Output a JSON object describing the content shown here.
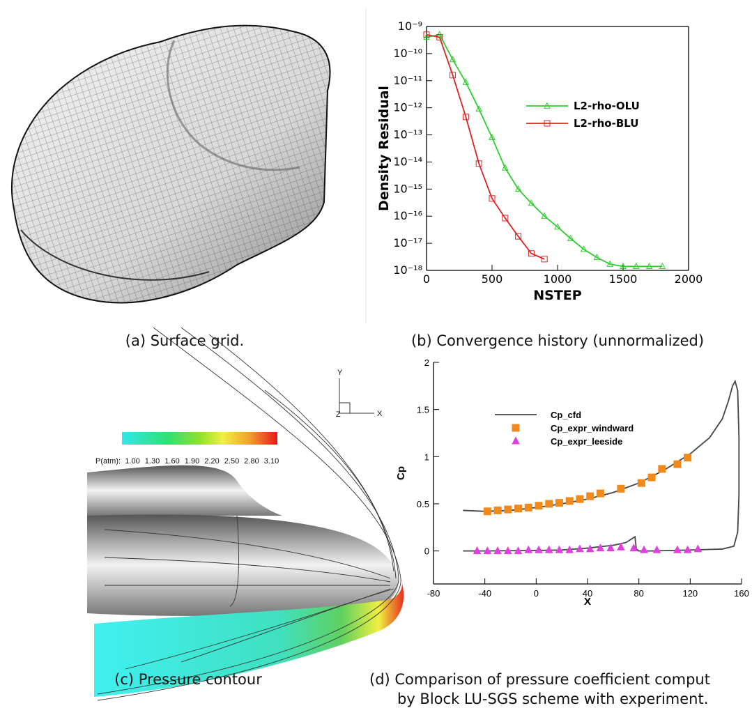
{
  "chart_data": [
    {
      "type": "line",
      "xlabel": "NSTEP",
      "ylabel": "Density Residual",
      "log_y": true,
      "xlim": [
        0,
        2000
      ],
      "xticks": [
        0,
        500,
        1000,
        1500,
        2000
      ],
      "ylim": [
        1e-18,
        1e-09
      ],
      "yticks": [
        {
          "value": 1e-18,
          "label": "10⁻¹⁸"
        },
        {
          "value": 1e-17,
          "label": "10⁻¹⁷"
        },
        {
          "value": 1e-16,
          "label": "10⁻¹⁶"
        },
        {
          "value": 1e-15,
          "label": "10⁻¹⁵"
        },
        {
          "value": 1e-14,
          "label": "10⁻¹⁴"
        },
        {
          "value": 1e-13,
          "label": "10⁻¹³"
        },
        {
          "value": 1e-12,
          "label": "10⁻¹²"
        },
        {
          "value": 1e-11,
          "label": "10⁻¹¹"
        },
        {
          "value": 1e-10,
          "label": "10⁻¹⁰"
        },
        {
          "value": 1e-09,
          "label": "10⁻⁹"
        }
      ],
      "legend": "upper right",
      "series": [
        {
          "name": "L2-rho-OLU",
          "color": "#2fcc2f",
          "line": true,
          "marker": "triangle-open",
          "x": [
            0,
            100,
            200,
            300,
            400,
            500,
            600,
            700,
            800,
            900,
            1000,
            1100,
            1200,
            1300,
            1400,
            1500,
            1600,
            1700,
            1800
          ],
          "values": [
            4e-10,
            5e-10,
            6e-11,
            8.7e-12,
            9e-13,
            8e-14,
            6e-15,
            1e-15,
            3e-16,
            1e-16,
            4e-17,
            1.5e-17,
            6e-18,
            3e-18,
            1.7e-18,
            1.4e-18,
            1.4e-18,
            1.4e-18,
            1.4e-18
          ]
        },
        {
          "name": "L2-rho-BLU",
          "color": "#dd2222",
          "line": true,
          "marker": "square-open",
          "x": [
            0,
            100,
            200,
            300,
            400,
            500,
            600,
            700,
            800,
            900
          ],
          "values": [
            5e-10,
            4e-10,
            1.6e-11,
            4.6e-13,
            8.7e-15,
            4.5e-16,
            8.5e-17,
            1.8e-17,
            4.2e-18,
            2.6e-18
          ]
        }
      ]
    },
    {
      "type": "line",
      "xlabel": "X",
      "ylabel": "Cp",
      "log_y": false,
      "xlim": [
        -80,
        160
      ],
      "xticks": [
        -80,
        -40,
        0,
        40,
        80,
        120,
        160
      ],
      "ylim": [
        -0.35,
        2
      ],
      "yticks": [
        0,
        0.5,
        1,
        1.5,
        2
      ],
      "legend": "upper left",
      "series": [
        {
          "name": "Cp_cfd",
          "color": "#444444",
          "line": true,
          "marker": "none",
          "x": [
            -57,
            -40,
            -20,
            0,
            20,
            40,
            60,
            80,
            100,
            120,
            135,
            145,
            150,
            153,
            155,
            157,
            158,
            158,
            157,
            154,
            145,
            120,
            90,
            80,
            78,
            77,
            70,
            60,
            40,
            20,
            0,
            -40,
            -57
          ],
          "values": [
            0.43,
            0.42,
            0.43,
            0.46,
            0.5,
            0.55,
            0.62,
            0.72,
            0.86,
            1.03,
            1.2,
            1.4,
            1.6,
            1.75,
            1.8,
            1.7,
            1.2,
            0.6,
            0.2,
            0.05,
            0.02,
            0.01,
            0.0,
            0.0,
            0.02,
            0.15,
            0.09,
            0.06,
            0.03,
            0.01,
            0.005,
            0.0,
            0.0
          ]
        },
        {
          "name": "Cp_expr_windward",
          "color": "#f08a1c",
          "line": false,
          "marker": "square",
          "x": [
            -38,
            -30,
            -22,
            -14,
            -6,
            2,
            10,
            18,
            26,
            34,
            42,
            50,
            66,
            82,
            90,
            98,
            110,
            118
          ],
          "values": [
            0.42,
            0.43,
            0.44,
            0.45,
            0.46,
            0.48,
            0.5,
            0.51,
            0.53,
            0.55,
            0.58,
            0.61,
            0.66,
            0.72,
            0.78,
            0.87,
            0.92,
            0.99
          ]
        },
        {
          "name": "Cp_expr_leeside",
          "color": "#e040e0",
          "line": false,
          "marker": "triangle",
          "x": [
            -46,
            -38,
            -30,
            -22,
            -14,
            -6,
            2,
            10,
            18,
            26,
            34,
            42,
            50,
            58,
            66,
            76,
            84,
            94,
            110,
            118,
            126
          ],
          "values": [
            0,
            0,
            0,
            0,
            0,
            0.01,
            0.01,
            0.01,
            0.01,
            0.01,
            0.02,
            0.02,
            0.03,
            0.03,
            0.04,
            0.03,
            0.01,
            0.01,
            0.01,
            0.01,
            0.02
          ]
        }
      ]
    }
  ],
  "captions": [
    "(a) Surface grid.",
    "(b) Convergence history (unnormalized)",
    "(c) Pressure contour",
    "(d) Comparison of pressure coefficient comput",
    "by Block LU-SGS scheme with experiment."
  ],
  "contour": {
    "colorbar_title": "P(atm):",
    "colorbar_labels": [
      "1.00",
      "1.30",
      "1.60",
      "1.90",
      "2.20",
      "2.50",
      "2.80",
      "3.10"
    ],
    "axis_labels": [
      "Y",
      "X",
      "Z"
    ]
  }
}
